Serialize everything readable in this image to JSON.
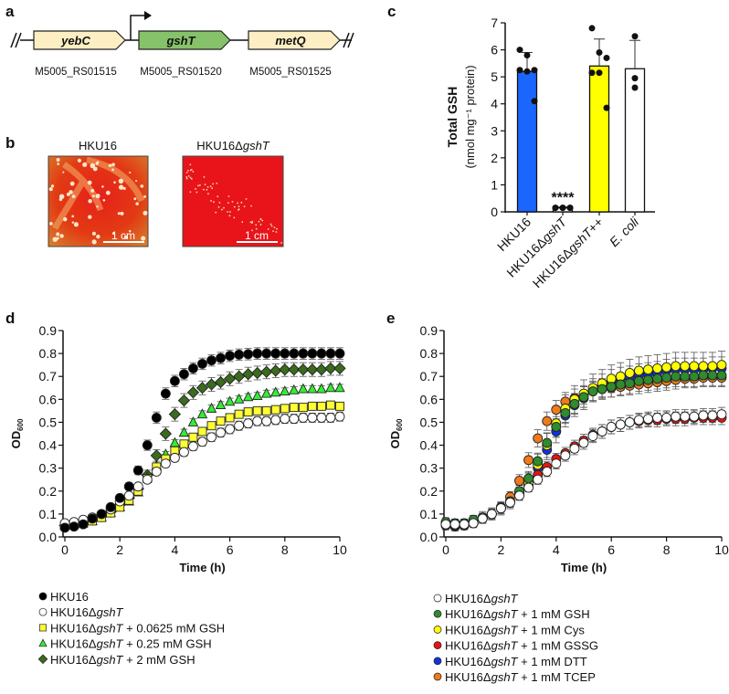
{
  "panel_labels": {
    "a": "a",
    "b": "b",
    "c": "c",
    "d": "d",
    "e": "e"
  },
  "panel_a": {
    "genes": [
      {
        "name": "yebC",
        "locus": "M5005_RS01515",
        "color": "#fdefc3"
      },
      {
        "name": "gshT",
        "locus": "M5005_RS01520",
        "color": "#86c26a"
      },
      {
        "name": "metQ",
        "locus": "M5005_RS01525",
        "color": "#fdefc3"
      }
    ]
  },
  "panel_b": {
    "plates": [
      {
        "title": "HKU16",
        "title_pre": "HKU16",
        "title_ital": "",
        "scale_bar": "1 cm"
      },
      {
        "title": "HKU16ΔgshT",
        "title_pre": "HKU16Δ",
        "title_ital": "gshT",
        "scale_bar": "1 cm"
      }
    ]
  },
  "chart_data": [
    {
      "id": "c",
      "type": "bar",
      "title": "",
      "ylabel": "Total GSH",
      "ylabel_units": "(nmol mg⁻¹ protein)",
      "ylim": [
        0,
        7
      ],
      "yticks": [
        0,
        1,
        2,
        3,
        4,
        5,
        6,
        7
      ],
      "categories": [
        {
          "pre": "HKU16",
          "ital": "",
          "post": ""
        },
        {
          "pre": "HKU16Δ",
          "ital": "gshT",
          "post": ""
        },
        {
          "pre": "HKU16Δ",
          "ital": "gshT",
          "post": "++"
        },
        {
          "pre": "",
          "ital": "E. coli",
          "post": ""
        }
      ],
      "values": [
        5.2,
        0.15,
        5.4,
        5.3
      ],
      "sd": [
        0.7,
        0.03,
        1.0,
        1.05
      ],
      "colors": [
        "#1a66ff",
        "#ffffff",
        "#ffff00",
        "#ffffff"
      ],
      "points": [
        [
          6.0,
          5.8,
          5.25,
          5.25,
          5.2,
          4.1
        ],
        [
          0.15,
          0.15,
          0.15,
          0.15,
          0.15,
          0.15
        ],
        [
          6.8,
          5.9,
          5.7,
          5.15,
          5.15,
          3.85
        ],
        [
          6.5,
          4.95,
          4.6
        ]
      ],
      "annotations": [
        {
          "category": 1,
          "text": "****"
        }
      ]
    },
    {
      "id": "d",
      "type": "scatter",
      "xlabel": "Time (h)",
      "ylabel": "OD",
      "ylabel_sub": "600",
      "xlim": [
        0,
        10
      ],
      "ylim": [
        0,
        0.9
      ],
      "xticks": [
        0,
        2,
        4,
        6,
        8,
        10
      ],
      "yticks": [
        "0.0",
        "0.1",
        "0.2",
        "0.3",
        "0.4",
        "0.5",
        "0.6",
        "0.7",
        "0.8",
        "0.9"
      ],
      "x_step_h": 0.3333,
      "series": [
        {
          "pre": "HKU16",
          "ital": "",
          "post": "",
          "marker": "circle",
          "color": "#000000",
          "sd": 0.025,
          "values": [
            0.04,
            0.045,
            0.055,
            0.08,
            0.1,
            0.13,
            0.17,
            0.22,
            0.29,
            0.4,
            0.52,
            0.625,
            0.68,
            0.71,
            0.735,
            0.755,
            0.77,
            0.78,
            0.79,
            0.795,
            0.797,
            0.8,
            0.8,
            0.8,
            0.8,
            0.8,
            0.8,
            0.8,
            0.8,
            0.8,
            0.8
          ]
        },
        {
          "pre": "HKU16Δ",
          "ital": "gshT",
          "post": "",
          "marker": "circle",
          "color": "#ffffff",
          "sd": 0.02,
          "values": [
            0.06,
            0.065,
            0.075,
            0.085,
            0.1,
            0.12,
            0.155,
            0.18,
            0.22,
            0.25,
            0.285,
            0.32,
            0.345,
            0.37,
            0.395,
            0.415,
            0.435,
            0.455,
            0.47,
            0.485,
            0.495,
            0.505,
            0.505,
            0.51,
            0.515,
            0.515,
            0.52,
            0.52,
            0.52,
            0.52,
            0.525
          ]
        },
        {
          "pre": "HKU16Δ",
          "ital": "gshT",
          "post": " + 0.0625 mM GSH",
          "marker": "square",
          "color": "#ffff33",
          "sd": 0.015,
          "values": [
            0.05,
            0.055,
            0.06,
            0.07,
            0.085,
            0.105,
            0.13,
            0.16,
            0.2,
            0.255,
            0.305,
            0.34,
            0.375,
            0.405,
            0.435,
            0.46,
            0.485,
            0.505,
            0.52,
            0.535,
            0.545,
            0.55,
            0.55,
            0.555,
            0.56,
            0.565,
            0.565,
            0.57,
            0.57,
            0.575,
            0.57
          ]
        },
        {
          "pre": "HKU16Δ",
          "ital": "gshT",
          "post": " + 0.25 mM GSH",
          "marker": "triangle",
          "color": "#33ee33",
          "sd": 0.015,
          "values": [
            0.05,
            0.055,
            0.06,
            0.07,
            0.085,
            0.105,
            0.13,
            0.155,
            0.195,
            0.26,
            0.31,
            0.36,
            0.41,
            0.455,
            0.5,
            0.535,
            0.56,
            0.575,
            0.59,
            0.6,
            0.61,
            0.615,
            0.625,
            0.63,
            0.635,
            0.64,
            0.645,
            0.645,
            0.645,
            0.65,
            0.65
          ]
        },
        {
          "pre": "HKU16Δ",
          "ital": "gshT",
          "post": " + 2 mM GSH",
          "marker": "diamond",
          "color": "#3a6b1e",
          "sd": 0.03,
          "values": [
            0.05,
            0.055,
            0.06,
            0.075,
            0.09,
            0.11,
            0.14,
            0.17,
            0.21,
            0.27,
            0.355,
            0.45,
            0.535,
            0.595,
            0.63,
            0.65,
            0.665,
            0.675,
            0.69,
            0.7,
            0.71,
            0.715,
            0.72,
            0.725,
            0.73,
            0.73,
            0.73,
            0.73,
            0.73,
            0.735,
            0.735
          ]
        }
      ]
    },
    {
      "id": "e",
      "type": "scatter",
      "xlabel": "Time (h)",
      "ylabel": "OD",
      "ylabel_sub": "600",
      "xlim": [
        0,
        10
      ],
      "ylim": [
        0,
        0.9
      ],
      "xticks": [
        0,
        2,
        4,
        6,
        8,
        10
      ],
      "yticks": [
        "0.0",
        "0.1",
        "0.2",
        "0.3",
        "0.4",
        "0.5",
        "0.6",
        "0.7",
        "0.8",
        "0.9"
      ],
      "x_step_h": 0.3333,
      "series": [
        {
          "pre": "HKU16Δ",
          "ital": "gshT",
          "post": "",
          "marker": "circle",
          "color": "#ffffff",
          "sd": 0.03,
          "values": [
            0.055,
            0.055,
            0.055,
            0.06,
            0.08,
            0.1,
            0.125,
            0.15,
            0.18,
            0.215,
            0.25,
            0.285,
            0.32,
            0.355,
            0.385,
            0.41,
            0.44,
            0.46,
            0.48,
            0.49,
            0.5,
            0.51,
            0.515,
            0.52,
            0.52,
            0.525,
            0.525,
            0.525,
            0.53,
            0.53,
            0.535
          ]
        },
        {
          "pre": "HKU16Δ",
          "ital": "gshT",
          "post": " + 1 mM GSH",
          "marker": "circle",
          "color": "#2e8b2e",
          "sd": 0.045,
          "values": [
            0.065,
            0.06,
            0.06,
            0.075,
            0.085,
            0.1,
            0.125,
            0.155,
            0.2,
            0.255,
            0.33,
            0.41,
            0.48,
            0.54,
            0.58,
            0.61,
            0.635,
            0.645,
            0.655,
            0.665,
            0.67,
            0.68,
            0.685,
            0.69,
            0.695,
            0.7,
            0.7,
            0.7,
            0.705,
            0.705,
            0.705
          ]
        },
        {
          "pre": "HKU16Δ",
          "ital": "gshT",
          "post": " + 1 mM Cys",
          "marker": "circle",
          "color": "#ffff00",
          "sd": 0.06,
          "values": [
            0.06,
            0.055,
            0.055,
            0.07,
            0.085,
            0.1,
            0.125,
            0.155,
            0.195,
            0.24,
            0.315,
            0.4,
            0.495,
            0.56,
            0.6,
            0.625,
            0.65,
            0.67,
            0.69,
            0.7,
            0.715,
            0.725,
            0.73,
            0.735,
            0.74,
            0.745,
            0.745,
            0.745,
            0.745,
            0.745,
            0.75
          ]
        },
        {
          "pre": "HKU16Δ",
          "ital": "gshT",
          "post": " + 1 mM GSSG",
          "marker": "circle",
          "color": "#ee1111",
          "sd": 0.03,
          "values": [
            0.055,
            0.05,
            0.05,
            0.06,
            0.08,
            0.1,
            0.125,
            0.15,
            0.185,
            0.225,
            0.27,
            0.305,
            0.34,
            0.365,
            0.395,
            0.42,
            0.445,
            0.46,
            0.48,
            0.49,
            0.5,
            0.505,
            0.51,
            0.51,
            0.515,
            0.515,
            0.515,
            0.52,
            0.52,
            0.52,
            0.52
          ]
        },
        {
          "pre": "HKU16Δ",
          "ital": "gshT",
          "post": " + 1 mM DTT",
          "marker": "circle",
          "color": "#1133dd",
          "sd": 0.05,
          "values": [
            0.05,
            0.045,
            0.05,
            0.06,
            0.08,
            0.1,
            0.125,
            0.155,
            0.195,
            0.245,
            0.3,
            0.38,
            0.46,
            0.53,
            0.575,
            0.605,
            0.64,
            0.66,
            0.68,
            0.69,
            0.695,
            0.705,
            0.71,
            0.715,
            0.725,
            0.73,
            0.73,
            0.73,
            0.73,
            0.735,
            0.735
          ]
        },
        {
          "pre": "HKU16Δ",
          "ital": "gshT",
          "post": " + 1 mM TCEP",
          "marker": "circle",
          "color": "#f07a1a",
          "sd": 0.04,
          "values": [
            0.055,
            0.05,
            0.05,
            0.06,
            0.08,
            0.1,
            0.13,
            0.175,
            0.245,
            0.335,
            0.43,
            0.505,
            0.555,
            0.59,
            0.605,
            0.62,
            0.635,
            0.645,
            0.65,
            0.655,
            0.66,
            0.665,
            0.67,
            0.675,
            0.68,
            0.685,
            0.69,
            0.69,
            0.695,
            0.695,
            0.695
          ]
        }
      ]
    }
  ]
}
